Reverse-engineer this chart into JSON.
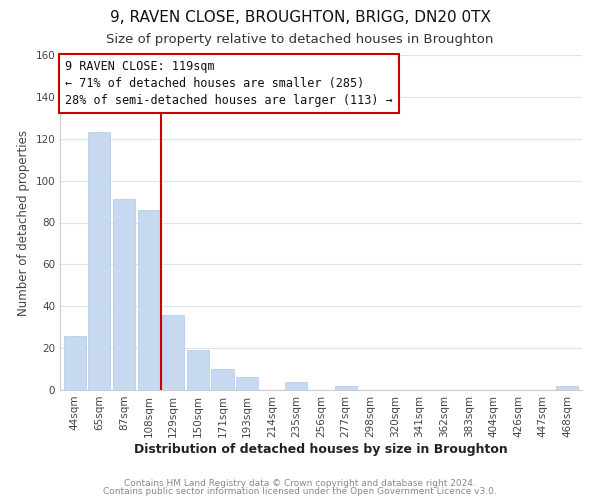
{
  "title": "9, RAVEN CLOSE, BROUGHTON, BRIGG, DN20 0TX",
  "subtitle": "Size of property relative to detached houses in Broughton",
  "xlabel": "Distribution of detached houses by size in Broughton",
  "ylabel": "Number of detached properties",
  "bar_labels": [
    "44sqm",
    "65sqm",
    "87sqm",
    "108sqm",
    "129sqm",
    "150sqm",
    "171sqm",
    "193sqm",
    "214sqm",
    "235sqm",
    "256sqm",
    "277sqm",
    "298sqm",
    "320sqm",
    "341sqm",
    "362sqm",
    "383sqm",
    "404sqm",
    "426sqm",
    "447sqm",
    "468sqm"
  ],
  "bar_values": [
    26,
    123,
    91,
    86,
    36,
    19,
    10,
    6,
    0,
    4,
    0,
    2,
    0,
    0,
    0,
    0,
    0,
    0,
    0,
    0,
    2
  ],
  "bar_color": "#c6d9f0",
  "bar_edge_color": "#b0c8e8",
  "ylim": [
    0,
    160
  ],
  "yticks": [
    0,
    20,
    40,
    60,
    80,
    100,
    120,
    140,
    160
  ],
  "vline_color": "#cc0000",
  "annotation_title": "9 RAVEN CLOSE: 119sqm",
  "annotation_line1": "← 71% of detached houses are smaller (285)",
  "annotation_line2": "28% of semi-detached houses are larger (113) →",
  "annotation_box_color": "#ffffff",
  "annotation_box_edge": "#cc0000",
  "footer_line1": "Contains HM Land Registry data © Crown copyright and database right 2024.",
  "footer_line2": "Contains public sector information licensed under the Open Government Licence v3.0.",
  "background_color": "#ffffff",
  "grid_color": "#d8e4f0",
  "title_fontsize": 11,
  "subtitle_fontsize": 9.5,
  "xlabel_fontsize": 9,
  "ylabel_fontsize": 8.5,
  "tick_fontsize": 7.5,
  "annotation_fontsize": 8.5,
  "footer_fontsize": 6.5
}
